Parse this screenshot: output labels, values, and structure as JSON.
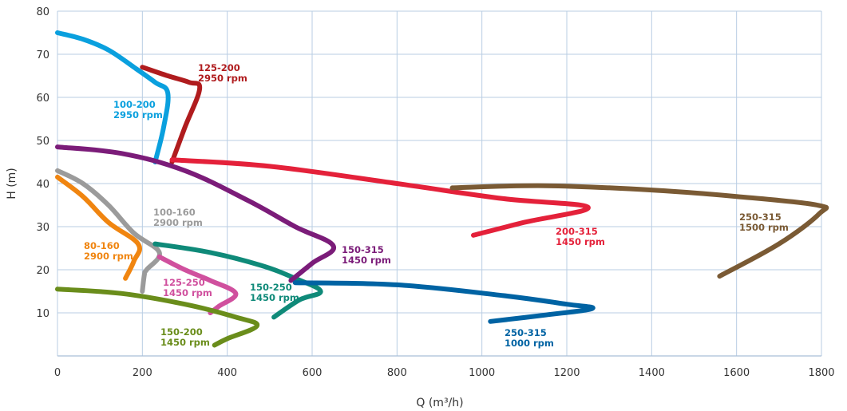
{
  "chart_data": {
    "type": "line",
    "xlabel": "Q (m³/h)",
    "ylabel": "H (m)",
    "xlim": [
      0,
      1800
    ],
    "ylim": [
      0,
      80
    ],
    "x_ticks": [
      0,
      200,
      400,
      600,
      800,
      1000,
      1200,
      1400,
      1600,
      1800
    ],
    "y_ticks": [
      10,
      20,
      30,
      40,
      50,
      60,
      70,
      80
    ],
    "grid": true,
    "series": [
      {
        "label_lines": [
          "100-200",
          "2950 rpm"
        ],
        "color": "#0aa0de",
        "points": [
          [
            0,
            75
          ],
          [
            60,
            73.5
          ],
          [
            120,
            71
          ],
          [
            180,
            67
          ],
          [
            230,
            63.5
          ],
          [
            260,
            61
          ],
          [
            250,
            53
          ],
          [
            230,
            45
          ]
        ]
      },
      {
        "label_lines": [
          "125-200",
          "2950 rpm"
        ],
        "color": "#b01c1e",
        "points": [
          [
            200,
            67
          ],
          [
            260,
            65
          ],
          [
            310,
            63.5
          ],
          [
            335,
            62
          ],
          [
            300,
            53
          ],
          [
            270,
            45
          ]
        ]
      },
      {
        "label_lines": [
          "100-160",
          "2900 rpm"
        ],
        "color": "#9b9b9b",
        "points": [
          [
            0,
            43
          ],
          [
            60,
            40
          ],
          [
            120,
            35
          ],
          [
            180,
            28.5
          ],
          [
            240,
            24
          ],
          [
            210,
            20
          ],
          [
            205,
            19
          ],
          [
            200,
            15
          ]
        ]
      },
      {
        "label_lines": [
          "80-160",
          "2900 rpm"
        ],
        "color": "#f08510",
        "points": [
          [
            0,
            41.5
          ],
          [
            60,
            37
          ],
          [
            120,
            31
          ],
          [
            190,
            26
          ],
          [
            180,
            22
          ],
          [
            160,
            18
          ]
        ]
      },
      {
        "label_lines": [
          "125-250",
          "1450 rpm"
        ],
        "color": "#d0509e",
        "points": [
          [
            240,
            23
          ],
          [
            300,
            20
          ],
          [
            360,
            17.5
          ],
          [
            420,
            14.5
          ],
          [
            380,
            11.5
          ],
          [
            360,
            10
          ]
        ]
      },
      {
        "label_lines": [
          "150-250",
          "1450 rpm"
        ],
        "color": "#0f8a79",
        "points": [
          [
            230,
            26
          ],
          [
            360,
            24
          ],
          [
            480,
            21
          ],
          [
            560,
            18
          ],
          [
            620,
            15
          ],
          [
            570,
            13
          ],
          [
            510,
            9
          ]
        ]
      },
      {
        "label_lines": [
          "150-315",
          "1450 rpm"
        ],
        "color": "#7b1c79",
        "points": [
          [
            0,
            48.5
          ],
          [
            150,
            47
          ],
          [
            300,
            43
          ],
          [
            450,
            36
          ],
          [
            560,
            30
          ],
          [
            650,
            25.5
          ],
          [
            600,
            21.5
          ],
          [
            550,
            17.5
          ]
        ]
      },
      {
        "label_lines": [
          "150-200",
          "1450 rpm"
        ],
        "color": "#6a8d1b",
        "points": [
          [
            0,
            15.5
          ],
          [
            150,
            14.5
          ],
          [
            300,
            12
          ],
          [
            420,
            9
          ],
          [
            470,
            7
          ],
          [
            400,
            4
          ],
          [
            370,
            2.5
          ]
        ]
      },
      {
        "label_lines": [
          "200-315",
          "1450 rpm"
        ],
        "color": "#e4213a",
        "points": [
          [
            270,
            45.5
          ],
          [
            500,
            44
          ],
          [
            800,
            40
          ],
          [
            1050,
            36.5
          ],
          [
            1250,
            34.5
          ],
          [
            1100,
            31
          ],
          [
            980,
            28
          ]
        ]
      },
      {
        "label_lines": [
          "250-315",
          "1000 rpm"
        ],
        "color": "#0063a3",
        "points": [
          [
            560,
            17
          ],
          [
            800,
            16.5
          ],
          [
            1050,
            14
          ],
          [
            1200,
            12
          ],
          [
            1260,
            11
          ],
          [
            1150,
            9.5
          ],
          [
            1020,
            8
          ]
        ]
      },
      {
        "label_lines": [
          "250-315",
          "1500 rpm"
        ],
        "color": "#7a5a34",
        "points": [
          [
            930,
            39
          ],
          [
            1150,
            39.5
          ],
          [
            1400,
            38.5
          ],
          [
            1600,
            37
          ],
          [
            1790,
            35
          ],
          [
            1795,
            33
          ],
          [
            1700,
            26
          ],
          [
            1560,
            18.5
          ]
        ]
      }
    ]
  }
}
